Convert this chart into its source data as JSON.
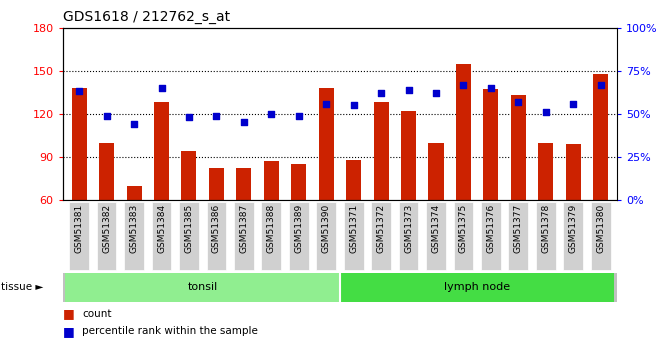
{
  "title": "GDS1618 / 212762_s_at",
  "samples": [
    "GSM51381",
    "GSM51382",
    "GSM51383",
    "GSM51384",
    "GSM51385",
    "GSM51386",
    "GSM51387",
    "GSM51388",
    "GSM51389",
    "GSM51390",
    "GSM51371",
    "GSM51372",
    "GSM51373",
    "GSM51374",
    "GSM51375",
    "GSM51376",
    "GSM51377",
    "GSM51378",
    "GSM51379",
    "GSM51380"
  ],
  "counts": [
    138,
    100,
    70,
    128,
    94,
    82,
    82,
    87,
    85,
    138,
    88,
    128,
    122,
    100,
    155,
    137,
    133,
    100,
    99,
    148
  ],
  "percentile": [
    63,
    49,
    44,
    65,
    48,
    49,
    45,
    50,
    49,
    56,
    55,
    62,
    64,
    62,
    67,
    65,
    57,
    51,
    56,
    67
  ],
  "groups": [
    {
      "label": "tonsil",
      "start": 0,
      "end": 10,
      "color": "#90ee90"
    },
    {
      "label": "lymph node",
      "start": 10,
      "end": 20,
      "color": "#44dd44"
    }
  ],
  "ymin": 60,
  "ymax": 180,
  "yticks": [
    60,
    90,
    120,
    150,
    180
  ],
  "y2min": 0,
  "y2max": 100,
  "y2ticks": [
    0,
    25,
    50,
    75,
    100
  ],
  "bar_color": "#cc2200",
  "dot_color": "#0000cc",
  "bar_width": 0.55,
  "background_plot": "#ffffff",
  "title_fontsize": 10,
  "tissue_label": "tissue ►",
  "legend_count": "count",
  "legend_pct": "percentile rank within the sample",
  "tick_bg": "#d0d0d0"
}
